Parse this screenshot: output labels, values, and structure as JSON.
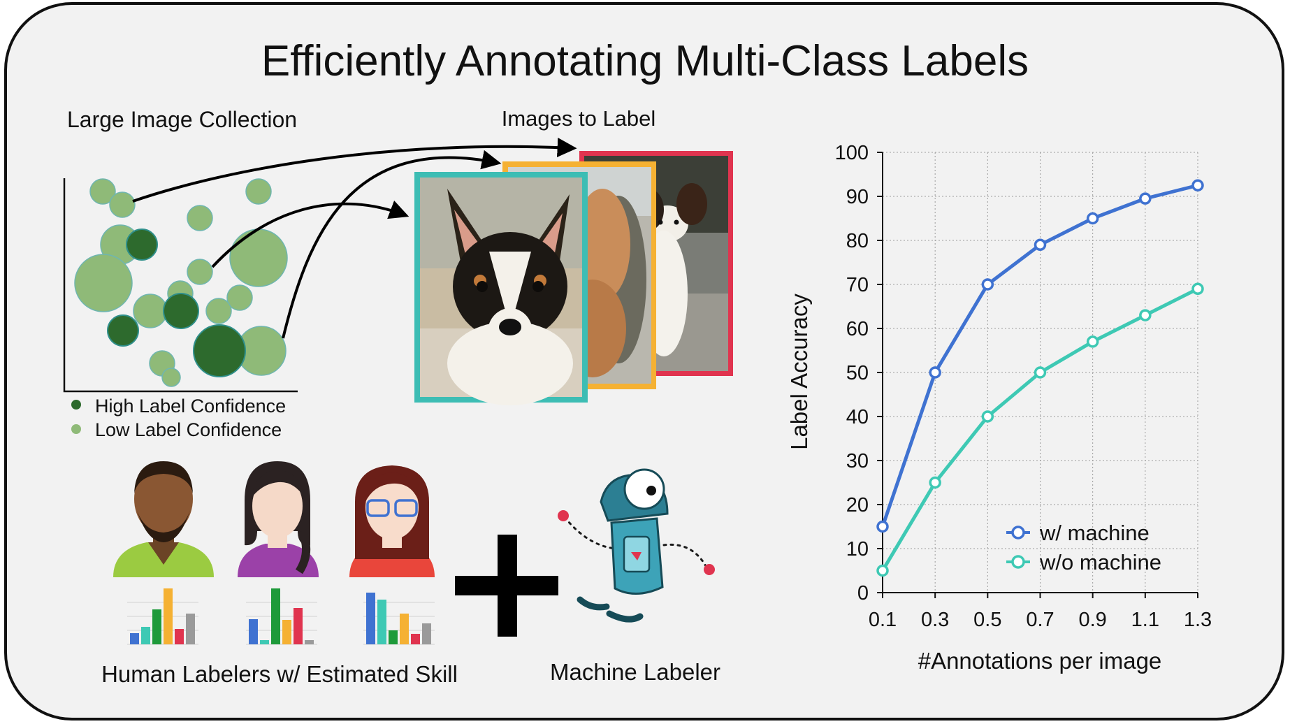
{
  "title": "Efficiently Annotating Multi-Class Labels",
  "collection": {
    "label": "Large Image Collection",
    "legend_high": "High Label Confidence",
    "legend_low": "Low Label Confidence",
    "colors": {
      "high": "#2d6a2d",
      "low": "#8fba78",
      "stroke_low": "#6fb6b0"
    }
  },
  "images_label": "Images to Label",
  "frame_colors": {
    "front": "#3dbdb4",
    "middle": "#f5b133",
    "back": "#e0344f"
  },
  "human_labelers_label": "Human Labelers w/ Estimated Skill",
  "machine_labeler_label": "Machine Labeler",
  "chart_data": {
    "type": "line",
    "xlabel": "#Annotations per image",
    "ylabel": "Label Accuracy",
    "x": [
      0.1,
      0.3,
      0.5,
      0.7,
      0.9,
      1.1,
      1.3
    ],
    "x_ticks": [
      "0.1",
      "0.3",
      "0.5",
      "0.7",
      "0.9",
      "1.1",
      "1.3"
    ],
    "y_ticks": [
      "0",
      "10",
      "20",
      "30",
      "40",
      "50",
      "60",
      "70",
      "80",
      "90",
      "100"
    ],
    "ylim": [
      0,
      100
    ],
    "grid": true,
    "legend_position": "bottom-right",
    "series": [
      {
        "name": "w/ machine",
        "color": "#3f72d1",
        "values": [
          15,
          50,
          70,
          79,
          85,
          89.5,
          92.5
        ]
      },
      {
        "name": "w/o machine",
        "color": "#3ec9b4",
        "values": [
          5,
          25,
          40,
          50,
          57,
          63,
          69
        ]
      }
    ]
  }
}
